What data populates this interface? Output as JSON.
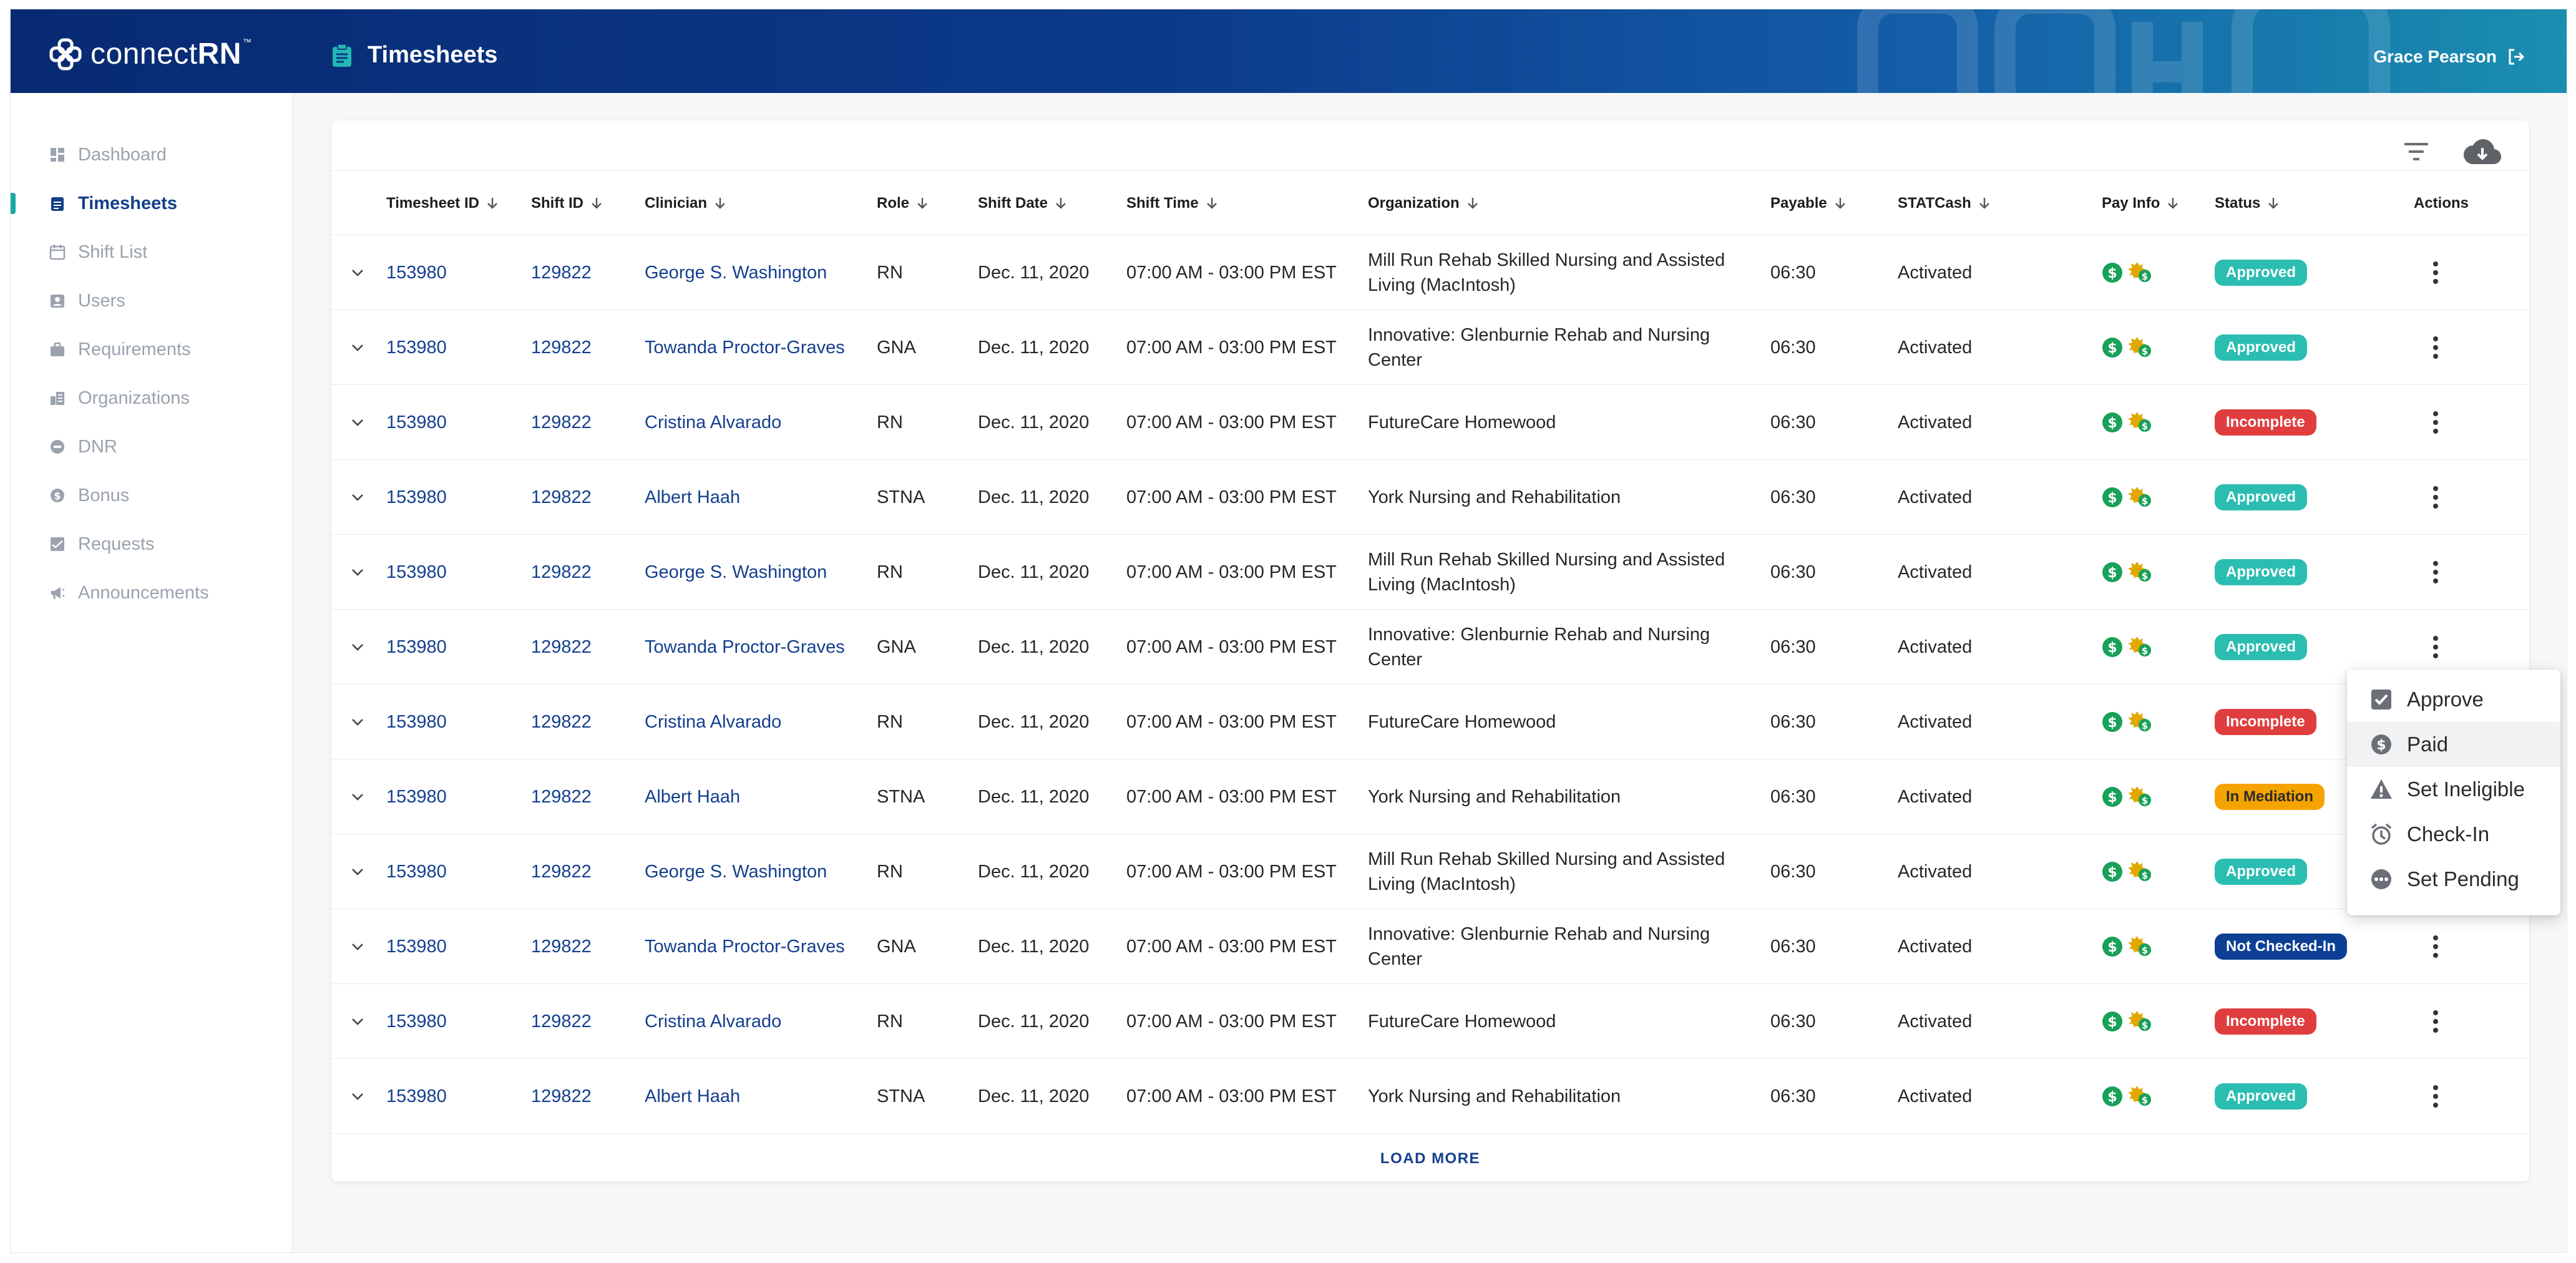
{
  "brand": {
    "logo_text_light": "connect",
    "logo_text_bold": "RN",
    "trademark": "™"
  },
  "header": {
    "page_title": "Timesheets",
    "user_name": "Grace Pearson"
  },
  "sidebar": {
    "items": [
      {
        "label": "Dashboard",
        "icon": "dashboard-icon"
      },
      {
        "label": "Timesheets",
        "icon": "clipboard-icon",
        "active": true
      },
      {
        "label": "Shift List",
        "icon": "calendar-icon"
      },
      {
        "label": "Users",
        "icon": "user-badge-icon"
      },
      {
        "label": "Requirements",
        "icon": "briefcase-icon"
      },
      {
        "label": "Organizations",
        "icon": "building-icon"
      },
      {
        "label": "DNR",
        "icon": "block-icon"
      },
      {
        "label": "Bonus",
        "icon": "dollar-icon"
      },
      {
        "label": "Requests",
        "icon": "inbox-icon"
      },
      {
        "label": "Announcements",
        "icon": "megaphone-icon"
      }
    ]
  },
  "table": {
    "columns": [
      "Timesheet ID",
      "Shift ID",
      "Clinician",
      "Role",
      "Shift Date",
      "Shift Time",
      "Organization",
      "Payable",
      "STATCash",
      "Pay Info",
      "Status",
      "Actions"
    ],
    "rows": [
      {
        "timesheet_id": "153980",
        "shift_id": "129822",
        "clinician": "George S. Washington",
        "role": "RN",
        "date": "Dec. 11, 2020",
        "time": "07:00 AM - 03:00 PM EST",
        "org_line1": "Mill Run Rehab Skilled Nursing and Assisted",
        "org_line2": "Living (MacIntosh)",
        "payable": "06:30",
        "statcash": "Activated",
        "status": "Approved"
      },
      {
        "timesheet_id": "153980",
        "shift_id": "129822",
        "clinician": "Towanda Proctor-Graves",
        "role": "GNA",
        "date": "Dec. 11, 2020",
        "time": "07:00 AM - 03:00 PM EST",
        "org_line1": "Innovative: Glenburnie Rehab and Nursing",
        "org_line2": "Center",
        "payable": "06:30",
        "statcash": "Activated",
        "status": "Approved"
      },
      {
        "timesheet_id": "153980",
        "shift_id": "129822",
        "clinician": "Cristina Alvarado",
        "role": "RN",
        "date": "Dec. 11, 2020",
        "time": "07:00 AM - 03:00 PM EST",
        "org_line1": "FutureCare Homewood",
        "org_line2": "",
        "payable": "06:30",
        "statcash": "Activated",
        "status": "Incomplete"
      },
      {
        "timesheet_id": "153980",
        "shift_id": "129822",
        "clinician": "Albert Haah",
        "role": "STNA",
        "date": "Dec. 11, 2020",
        "time": "07:00 AM - 03:00 PM EST",
        "org_line1": "York Nursing and Rehabilitation",
        "org_line2": "",
        "payable": "06:30",
        "statcash": "Activated",
        "status": "Approved"
      },
      {
        "timesheet_id": "153980",
        "shift_id": "129822",
        "clinician": "George S. Washington",
        "role": "RN",
        "date": "Dec. 11, 2020",
        "time": "07:00 AM - 03:00 PM EST",
        "org_line1": "Mill Run Rehab Skilled Nursing and Assisted",
        "org_line2": "Living (MacIntosh)",
        "payable": "06:30",
        "statcash": "Activated",
        "status": "Approved"
      },
      {
        "timesheet_id": "153980",
        "shift_id": "129822",
        "clinician": "Towanda Proctor-Graves",
        "role": "GNA",
        "date": "Dec. 11, 2020",
        "time": "07:00 AM - 03:00 PM EST",
        "org_line1": "Innovative: Glenburnie Rehab and Nursing",
        "org_line2": "Center",
        "payable": "06:30",
        "statcash": "Activated",
        "status": "Approved"
      },
      {
        "timesheet_id": "153980",
        "shift_id": "129822",
        "clinician": "Cristina Alvarado",
        "role": "RN",
        "date": "Dec. 11, 2020",
        "time": "07:00 AM - 03:00 PM EST",
        "org_line1": "FutureCare Homewood",
        "org_line2": "",
        "payable": "06:30",
        "statcash": "Activated",
        "status": "Incomplete"
      },
      {
        "timesheet_id": "153980",
        "shift_id": "129822",
        "clinician": "Albert Haah",
        "role": "STNA",
        "date": "Dec. 11, 2020",
        "time": "07:00 AM - 03:00 PM EST",
        "org_line1": "York Nursing and Rehabilitation",
        "org_line2": "",
        "payable": "06:30",
        "statcash": "Activated",
        "status": "In Mediation"
      },
      {
        "timesheet_id": "153980",
        "shift_id": "129822",
        "clinician": "George S. Washington",
        "role": "RN",
        "date": "Dec. 11, 2020",
        "time": "07:00 AM - 03:00 PM EST",
        "org_line1": "Mill Run Rehab Skilled Nursing and Assisted",
        "org_line2": "Living (MacIntosh)",
        "payable": "06:30",
        "statcash": "Activated",
        "status": "Approved"
      },
      {
        "timesheet_id": "153980",
        "shift_id": "129822",
        "clinician": "Towanda Proctor-Graves",
        "role": "GNA",
        "date": "Dec. 11, 2020",
        "time": "07:00 AM - 03:00 PM EST",
        "org_line1": "Innovative: Glenburnie Rehab and Nursing",
        "org_line2": "Center",
        "payable": "06:30",
        "statcash": "Activated",
        "status": "Not Checked-In"
      },
      {
        "timesheet_id": "153980",
        "shift_id": "129822",
        "clinician": "Cristina Alvarado",
        "role": "RN",
        "date": "Dec. 11, 2020",
        "time": "07:00 AM - 03:00 PM EST",
        "org_line1": "FutureCare Homewood",
        "org_line2": "",
        "payable": "06:30",
        "statcash": "Activated",
        "status": "Incomplete"
      },
      {
        "timesheet_id": "153980",
        "shift_id": "129822",
        "clinician": "Albert Haah",
        "role": "STNA",
        "date": "Dec. 11, 2020",
        "time": "07:00 AM - 03:00 PM EST",
        "org_line1": "York Nursing and Rehabilitation",
        "org_line2": "",
        "payable": "06:30",
        "statcash": "Activated",
        "status": "Approved"
      }
    ],
    "load_more": "LOAD MORE"
  },
  "status_colors": {
    "Approved": "#2bbdb2",
    "Incomplete": "#e03e3e",
    "In Mediation": "#f5a300",
    "Not Checked-In": "#0d3f94"
  },
  "status_text_colors": {
    "In Mediation": "#2b2b2b"
  },
  "action_menu": {
    "items": [
      {
        "label": "Approve",
        "icon": "checkbox-icon"
      },
      {
        "label": "Paid",
        "icon": "dollar-circle-icon"
      },
      {
        "label": "Set Ineligible",
        "icon": "warning-icon"
      },
      {
        "label": "Check-In",
        "icon": "alarm-clock-icon"
      },
      {
        "label": "Set Pending",
        "icon": "more-circle-icon"
      }
    ],
    "highlighted": "Paid"
  },
  "colors": {
    "brand_navy": "#0b3a8a",
    "accent_teal": "#18a9a3",
    "link_blue": "#143f8f",
    "pay_green": "#18a158"
  }
}
